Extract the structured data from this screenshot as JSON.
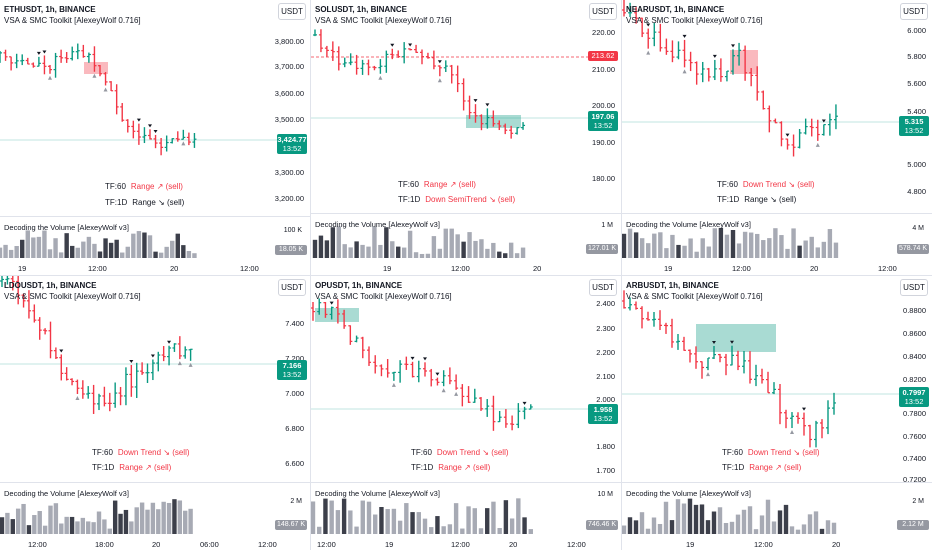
{
  "colors": {
    "up": "#089981",
    "down": "#f23645",
    "grid": "#e0e3eb",
    "volDark": "#3c3f4a",
    "volLight": "#a7aab4"
  },
  "common": {
    "currency": "USDT",
    "indicator": "VSA & SMC Toolkit [AlexeyWolf 0.716]",
    "volume_indicator": "Decoding the Volume [AlexeyWolf v3]"
  },
  "panels": [
    {
      "title": "ETHUSDT, 1h, BINANCE",
      "ticks": [
        "3,800.00",
        "3,700.00",
        "3,600.00",
        "3,500.00",
        "3,300.00",
        "3,200.00"
      ],
      "price_tag": "3,424.77",
      "price_time": "13:52",
      "tag_color": "up",
      "tf60_label": "TF:60",
      "tf60_value": "Range ↗ (sell)",
      "tf1d_label": "TF:1D",
      "tf1d_value": "Range ↘ (sell)",
      "vol_scale": "100 K",
      "vol_tag": "18.05 K",
      "x_ticks": [
        "19",
        "12:00",
        "20",
        "12:00"
      ]
    },
    {
      "title": "SOLUSDT, 1h, BINANCE",
      "ticks": [
        "220.00",
        "210.00",
        "200.00",
        "190.00",
        "180.00"
      ],
      "red_tag": "213.62",
      "price_tag": "197.06",
      "price_time": "13:52",
      "tag_color": "up",
      "tf60_label": "TF:60",
      "tf60_value": "Range ↗ (sell)",
      "tf1d_label": "TF:1D",
      "tf1d_value": "Down SemiTrend ↘ (sell)",
      "vol_scale": "1 M",
      "vol_tag": "127.01 K",
      "x_ticks": [
        "19",
        "12:00",
        "20"
      ]
    },
    {
      "title": "NEARUSDT, 1h, BINANCE",
      "ticks": [
        "6.000",
        "5.800",
        "5.600",
        "5.400",
        "5.000",
        "4.800"
      ],
      "price_tag": "5.315",
      "price_time": "13:52",
      "tag_color": "up",
      "tf60_label": "TF:60",
      "tf60_value": "Down Trend ↘ (sell)",
      "tf1d_label": "TF:1D",
      "tf1d_value": "Range ↘ (sell)",
      "vol_scale": "4 M",
      "vol_tag": "578.74 K",
      "x_ticks": [
        "19",
        "12:00",
        "20",
        "12:00"
      ]
    },
    {
      "title": "LDOUSDT, 1h, BINANCE",
      "ticks": [
        "7.400",
        "7.200",
        "7.000",
        "6.800",
        "6.600"
      ],
      "price_tag": "7.166",
      "price_time": "13:52",
      "tag_color": "up",
      "tf60_label": "TF:60",
      "tf60_value": "Down Trend ↘ (sell)",
      "tf1d_label": "TF:1D",
      "tf1d_value": "Range ↗ (sell)",
      "vol_scale": "2 M",
      "vol_tag": "148.67 K",
      "x_ticks": [
        "12:00",
        "18:00",
        "20",
        "06:00",
        "12:00"
      ]
    },
    {
      "title": "OPUSDT, 1h, BINANCE",
      "ticks": [
        "2.400",
        "2.300",
        "2.200",
        "2.100",
        "2.000",
        "1.800",
        "1.700"
      ],
      "price_tag": "1.958",
      "price_time": "13:52",
      "tag_color": "up",
      "tf60_label": "TF:60",
      "tf60_value": "Down Trend ↘ (sell)",
      "tf1d_label": "TF:1D",
      "tf1d_value": "Range ↗ (sell)",
      "vol_scale": "10 M",
      "vol_tag": "746.46 K",
      "x_ticks": [
        "12:00",
        "19",
        "12:00",
        "20",
        "12:00"
      ]
    },
    {
      "title": "ARBUSDT, 1h, BINANCE",
      "ticks": [
        "0.8800",
        "0.8600",
        "0.8400",
        "0.8200",
        "0.7800",
        "0.7600",
        "0.7400",
        "0.7200"
      ],
      "price_tag": "0.7997",
      "price_time": "13:52",
      "tag_color": "up",
      "tf60_label": "TF:60",
      "tf60_value": "Down Trend ↘ (sell)",
      "tf1d_label": "TF:1D",
      "tf1d_value": "Range ↗ (sell)",
      "vol_scale": "2 M",
      "vol_tag": "2.12 M",
      "x_ticks": [
        "19",
        "12:00",
        "20"
      ]
    }
  ]
}
